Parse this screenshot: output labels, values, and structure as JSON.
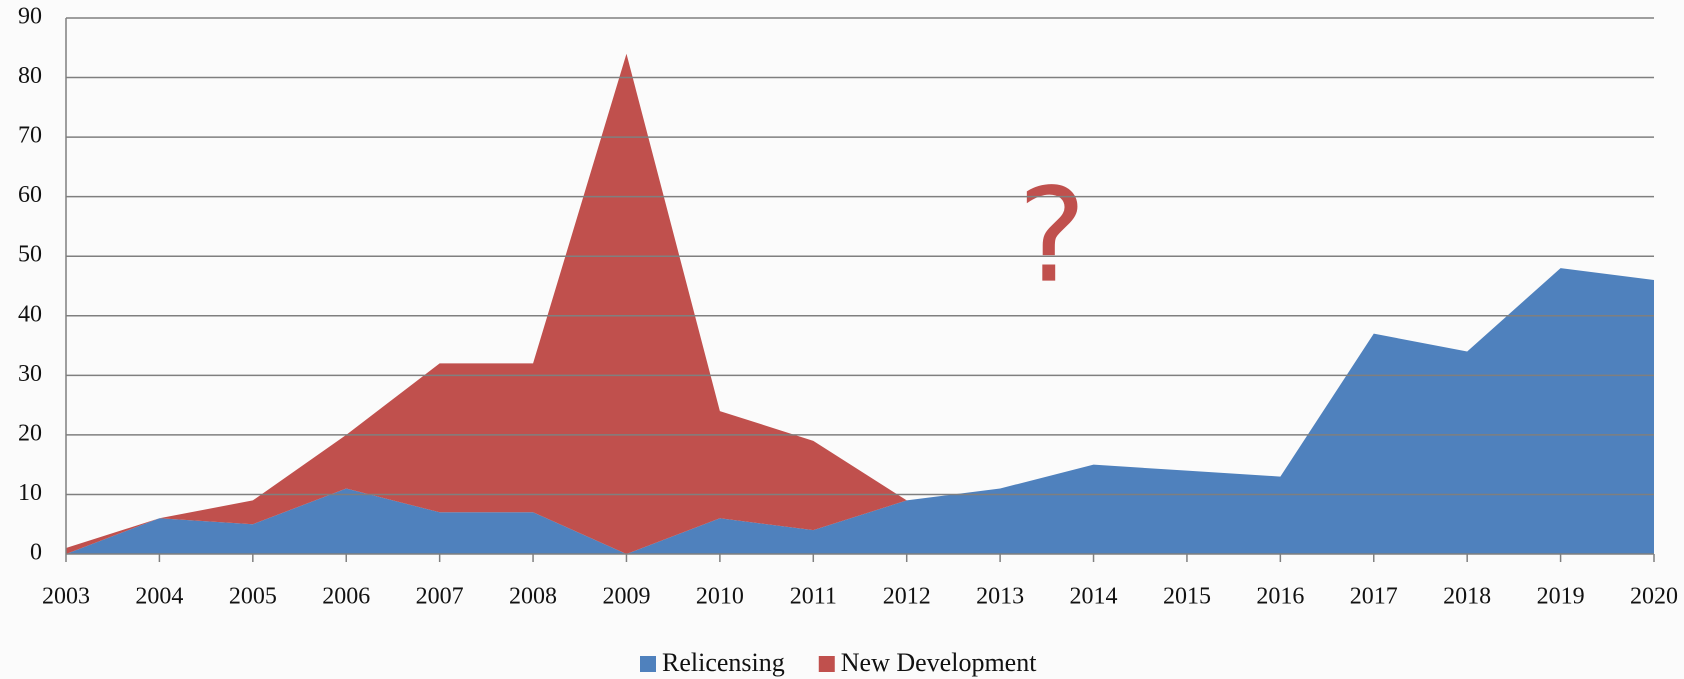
{
  "chart_data": {
    "type": "stacked-area",
    "categories": [
      "2003",
      "2004",
      "2005",
      "2006",
      "2007",
      "2008",
      "2009",
      "2010",
      "2011",
      "2012",
      "2013",
      "2014",
      "2015",
      "2016",
      "2017",
      "2018",
      "2019",
      "2020"
    ],
    "series": [
      {
        "name": "Relicensing",
        "color": "#4f81bd",
        "values": [
          0,
          6,
          5,
          11,
          7,
          7,
          0,
          6,
          4,
          9,
          11,
          15,
          14,
          13,
          37,
          34,
          48,
          46
        ]
      },
      {
        "name": "New Development",
        "color": "#c0504d",
        "values": [
          1,
          0,
          4,
          9,
          25,
          25,
          84,
          18,
          15,
          0,
          0,
          0,
          0,
          0,
          0,
          0,
          0,
          0
        ]
      }
    ],
    "annotation": "?",
    "ylim": [
      0,
      90
    ],
    "yticks": [
      0,
      10,
      20,
      30,
      40,
      50,
      60,
      70,
      80,
      90
    ],
    "grid": true,
    "legend": "bottom"
  }
}
